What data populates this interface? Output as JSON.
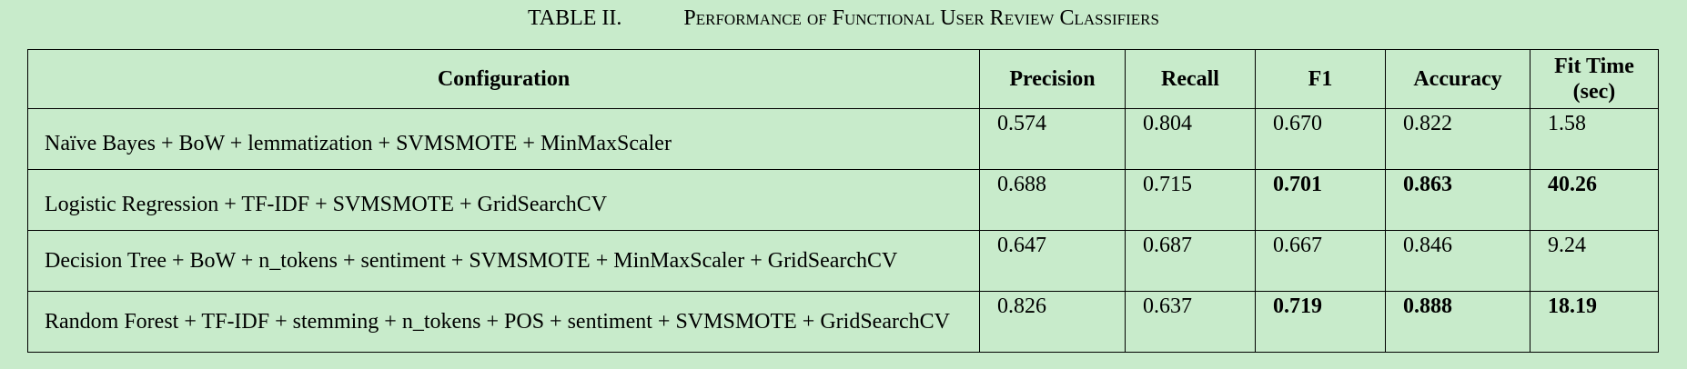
{
  "caption": {
    "label": "TABLE II.",
    "title": "Performance of Functional User Review Classifiers"
  },
  "table": {
    "headers": [
      "Configuration",
      "Precision",
      "Recall",
      "F1",
      "Accuracy",
      "Fit Time (sec)"
    ],
    "rows": [
      {
        "configuration": "Naïve Bayes + BoW + lemmatization + SVMSMOTE + MinMaxScaler",
        "precision": "0.574",
        "recall": "0.804",
        "f1": "0.670",
        "accuracy": "0.822",
        "fit_time": "1.58",
        "bold": []
      },
      {
        "configuration": "Logistic Regression + TF-IDF + SVMSMOTE + GridSearchCV",
        "precision": "0.688",
        "recall": "0.715",
        "f1": "0.701",
        "accuracy": "0.863",
        "fit_time": "40.26",
        "bold": [
          "f1",
          "accuracy",
          "fit_time"
        ]
      },
      {
        "configuration": "Decision Tree + BoW + n_tokens + sentiment + SVMSMOTE + MinMaxScaler + GridSearchCV",
        "precision": "0.647",
        "recall": "0.687",
        "f1": "0.667",
        "accuracy": "0.846",
        "fit_time": "9.24",
        "bold": []
      },
      {
        "configuration": "Random Forest + TF-IDF + stemming + n_tokens + POS + sentiment + SVMSMOTE + GridSearchCV",
        "precision": "0.826",
        "recall": "0.637",
        "f1": "0.719",
        "accuracy": "0.888",
        "fit_time": "18.19",
        "bold": [
          "f1",
          "accuracy",
          "fit_time"
        ]
      }
    ]
  }
}
